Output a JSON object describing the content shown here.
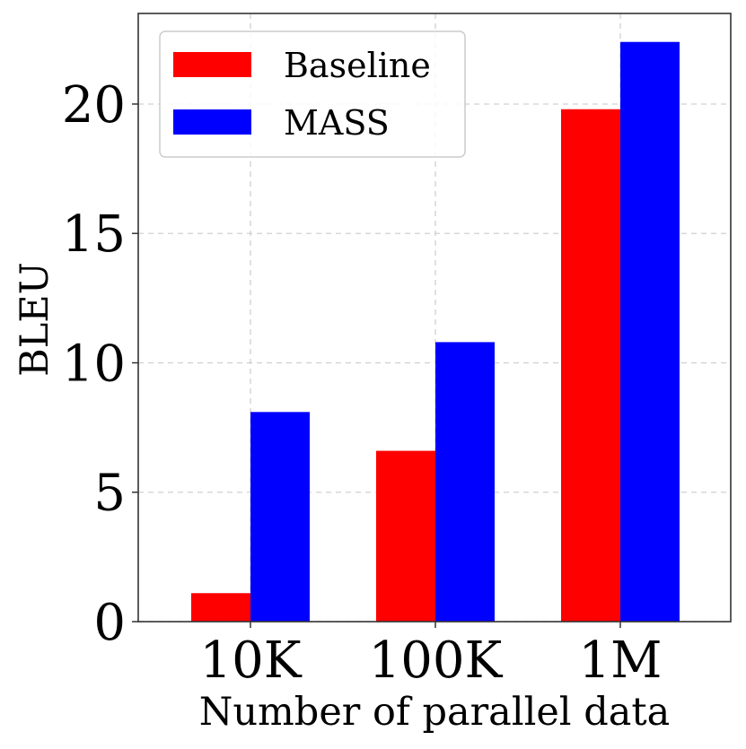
{
  "chart_data": {
    "type": "bar",
    "title": "",
    "xlabel": "Number of parallel data",
    "ylabel": "BLEU",
    "categories": [
      "10K",
      "100K",
      "1M"
    ],
    "series": [
      {
        "name": "Baseline",
        "color": "#ff0000",
        "values": [
          1.1,
          6.6,
          19.8
        ]
      },
      {
        "name": "MASS",
        "color": "#0000ff",
        "values": [
          8.1,
          10.8,
          22.4
        ]
      }
    ],
    "ylim": [
      0,
      23.5
    ],
    "yticks": [
      0,
      5,
      10,
      15,
      20
    ],
    "ytick_labels": [
      "0",
      "5",
      "10",
      "15",
      "20"
    ],
    "grid": true,
    "legend_position": "top-left"
  }
}
